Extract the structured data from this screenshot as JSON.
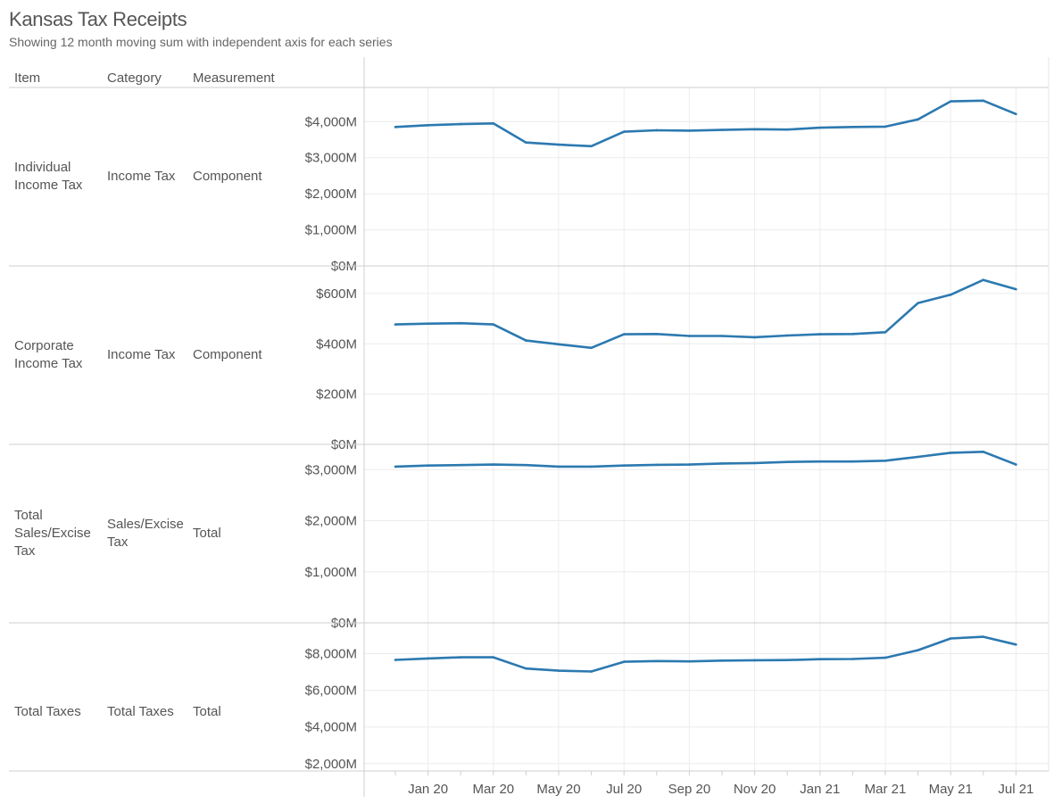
{
  "title": "Kansas Tax Receipts",
  "subtitle": "Showing 12 month moving sum with independent axis for each series",
  "headers": {
    "item": "Item",
    "category": "Category",
    "measurement": "Measurement"
  },
  "rows": [
    {
      "item": "Individual\nIncome Tax",
      "category": "Income Tax",
      "measurement": "Component"
    },
    {
      "item": "Corporate\nIncome Tax",
      "category": "Income Tax",
      "measurement": "Component"
    },
    {
      "item": "Total\nSales/Excise\nTax",
      "category": "Sales/Excise\nTax",
      "measurement": "Total"
    },
    {
      "item": "Total Taxes",
      "category": "Total Taxes",
      "measurement": "Total"
    }
  ],
  "chart_data": {
    "type": "line",
    "x": [
      "Dec 19",
      "Jan 20",
      "Feb 20",
      "Mar 20",
      "Apr 20",
      "May 20",
      "Jun 20",
      "Jul 20",
      "Aug 20",
      "Sep 20",
      "Oct 20",
      "Nov 20",
      "Dec 20",
      "Jan 21",
      "Feb 21",
      "Mar 21",
      "Apr 21",
      "May 21",
      "Jun 21",
      "Jul 21"
    ],
    "x_tick_labels": [
      "Jan 20",
      "Mar 20",
      "May 20",
      "Jul 20",
      "Sep 20",
      "Nov 20",
      "Jan 21",
      "Mar 21",
      "May 21",
      "Jul 21"
    ],
    "line_color": "#2c79b0",
    "panels": [
      {
        "ylim": [
          0,
          4600
        ],
        "y_tick_values": [
          0,
          1000,
          2000,
          3000,
          4000
        ],
        "y_tick_labels": [
          "$0M",
          "$1,000M",
          "$2,000M",
          "$3,000M",
          "$4,000M"
        ],
        "values": [
          3850,
          3900,
          3930,
          3950,
          3420,
          3360,
          3320,
          3720,
          3760,
          3750,
          3770,
          3790,
          3780,
          3830,
          3850,
          3860,
          4060,
          4560,
          4580,
          4210
        ]
      },
      {
        "ylim": [
          0,
          660
        ],
        "y_tick_values": [
          0,
          200,
          400,
          600
        ],
        "y_tick_labels": [
          "$0M",
          "$200M",
          "$400M",
          "$600M"
        ],
        "values": [
          477,
          480,
          482,
          477,
          413,
          398,
          384,
          438,
          439,
          431,
          431,
          426,
          433,
          438,
          439,
          446,
          562,
          595,
          654,
          617
        ]
      },
      {
        "ylim": [
          0,
          3250
        ],
        "y_tick_values": [
          0,
          1000,
          2000,
          3000
        ],
        "y_tick_labels": [
          "$0M",
          "$1,000M",
          "$2,000M",
          "$3,000M"
        ],
        "values": [
          3060,
          3080,
          3090,
          3100,
          3090,
          3060,
          3060,
          3080,
          3095,
          3100,
          3120,
          3130,
          3150,
          3160,
          3160,
          3175,
          3250,
          3330,
          3350,
          3100
        ]
      },
      {
        "ylim": [
          1600,
          9000
        ],
        "y_tick_values": [
          2000,
          4000,
          6000,
          8000
        ],
        "y_tick_labels": [
          "$2,000M",
          "$4,000M",
          "$6,000M",
          "$8,000M"
        ],
        "values": [
          7660,
          7740,
          7800,
          7800,
          7190,
          7070,
          7030,
          7560,
          7600,
          7580,
          7620,
          7640,
          7650,
          7700,
          7710,
          7780,
          8190,
          8830,
          8920,
          8500
        ]
      }
    ]
  }
}
